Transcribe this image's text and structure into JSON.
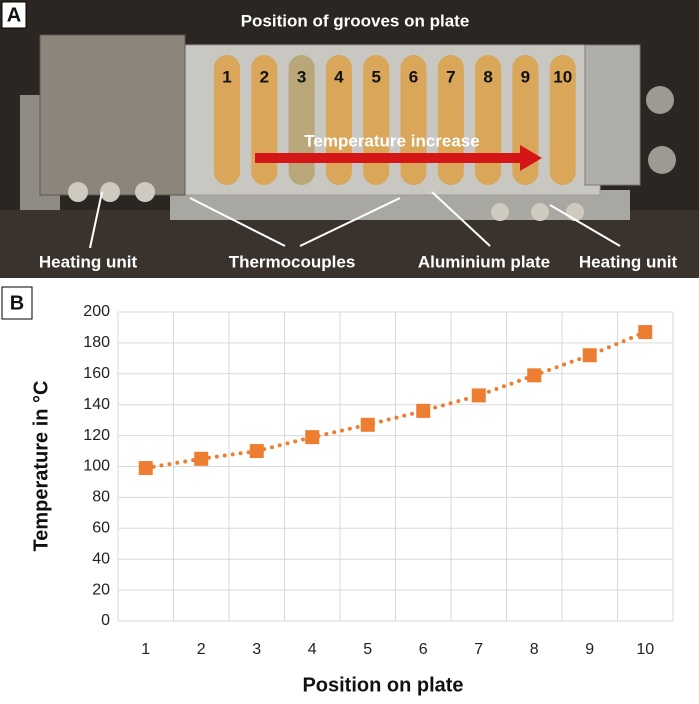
{
  "panel_a": {
    "label": "A",
    "title": "Position of grooves on plate",
    "groove_numbers": [
      "1",
      "2",
      "3",
      "4",
      "5",
      "6",
      "7",
      "8",
      "9",
      "10"
    ],
    "arrow_label": "Temperature increase",
    "labels": [
      "Heating unit",
      "Thermocouples",
      "Aluminium plate",
      "Heating unit"
    ]
  },
  "chart_data": {
    "type": "line",
    "panel_label": "B",
    "x_label": "Position on plate",
    "y_label": "Temperature in °C",
    "categories": [
      "1",
      "2",
      "3",
      "4",
      "5",
      "6",
      "7",
      "8",
      "9",
      "10"
    ],
    "series": [
      {
        "name": "Temperature",
        "color": "#ed7d31",
        "values": [
          99,
          105,
          110,
          119,
          127,
          136,
          146,
          159,
          172,
          187
        ]
      }
    ],
    "ylim": [
      0,
      200
    ],
    "yticks": [
      0,
      20,
      40,
      60,
      80,
      100,
      120,
      140,
      160,
      180,
      200
    ],
    "grid": true
  }
}
